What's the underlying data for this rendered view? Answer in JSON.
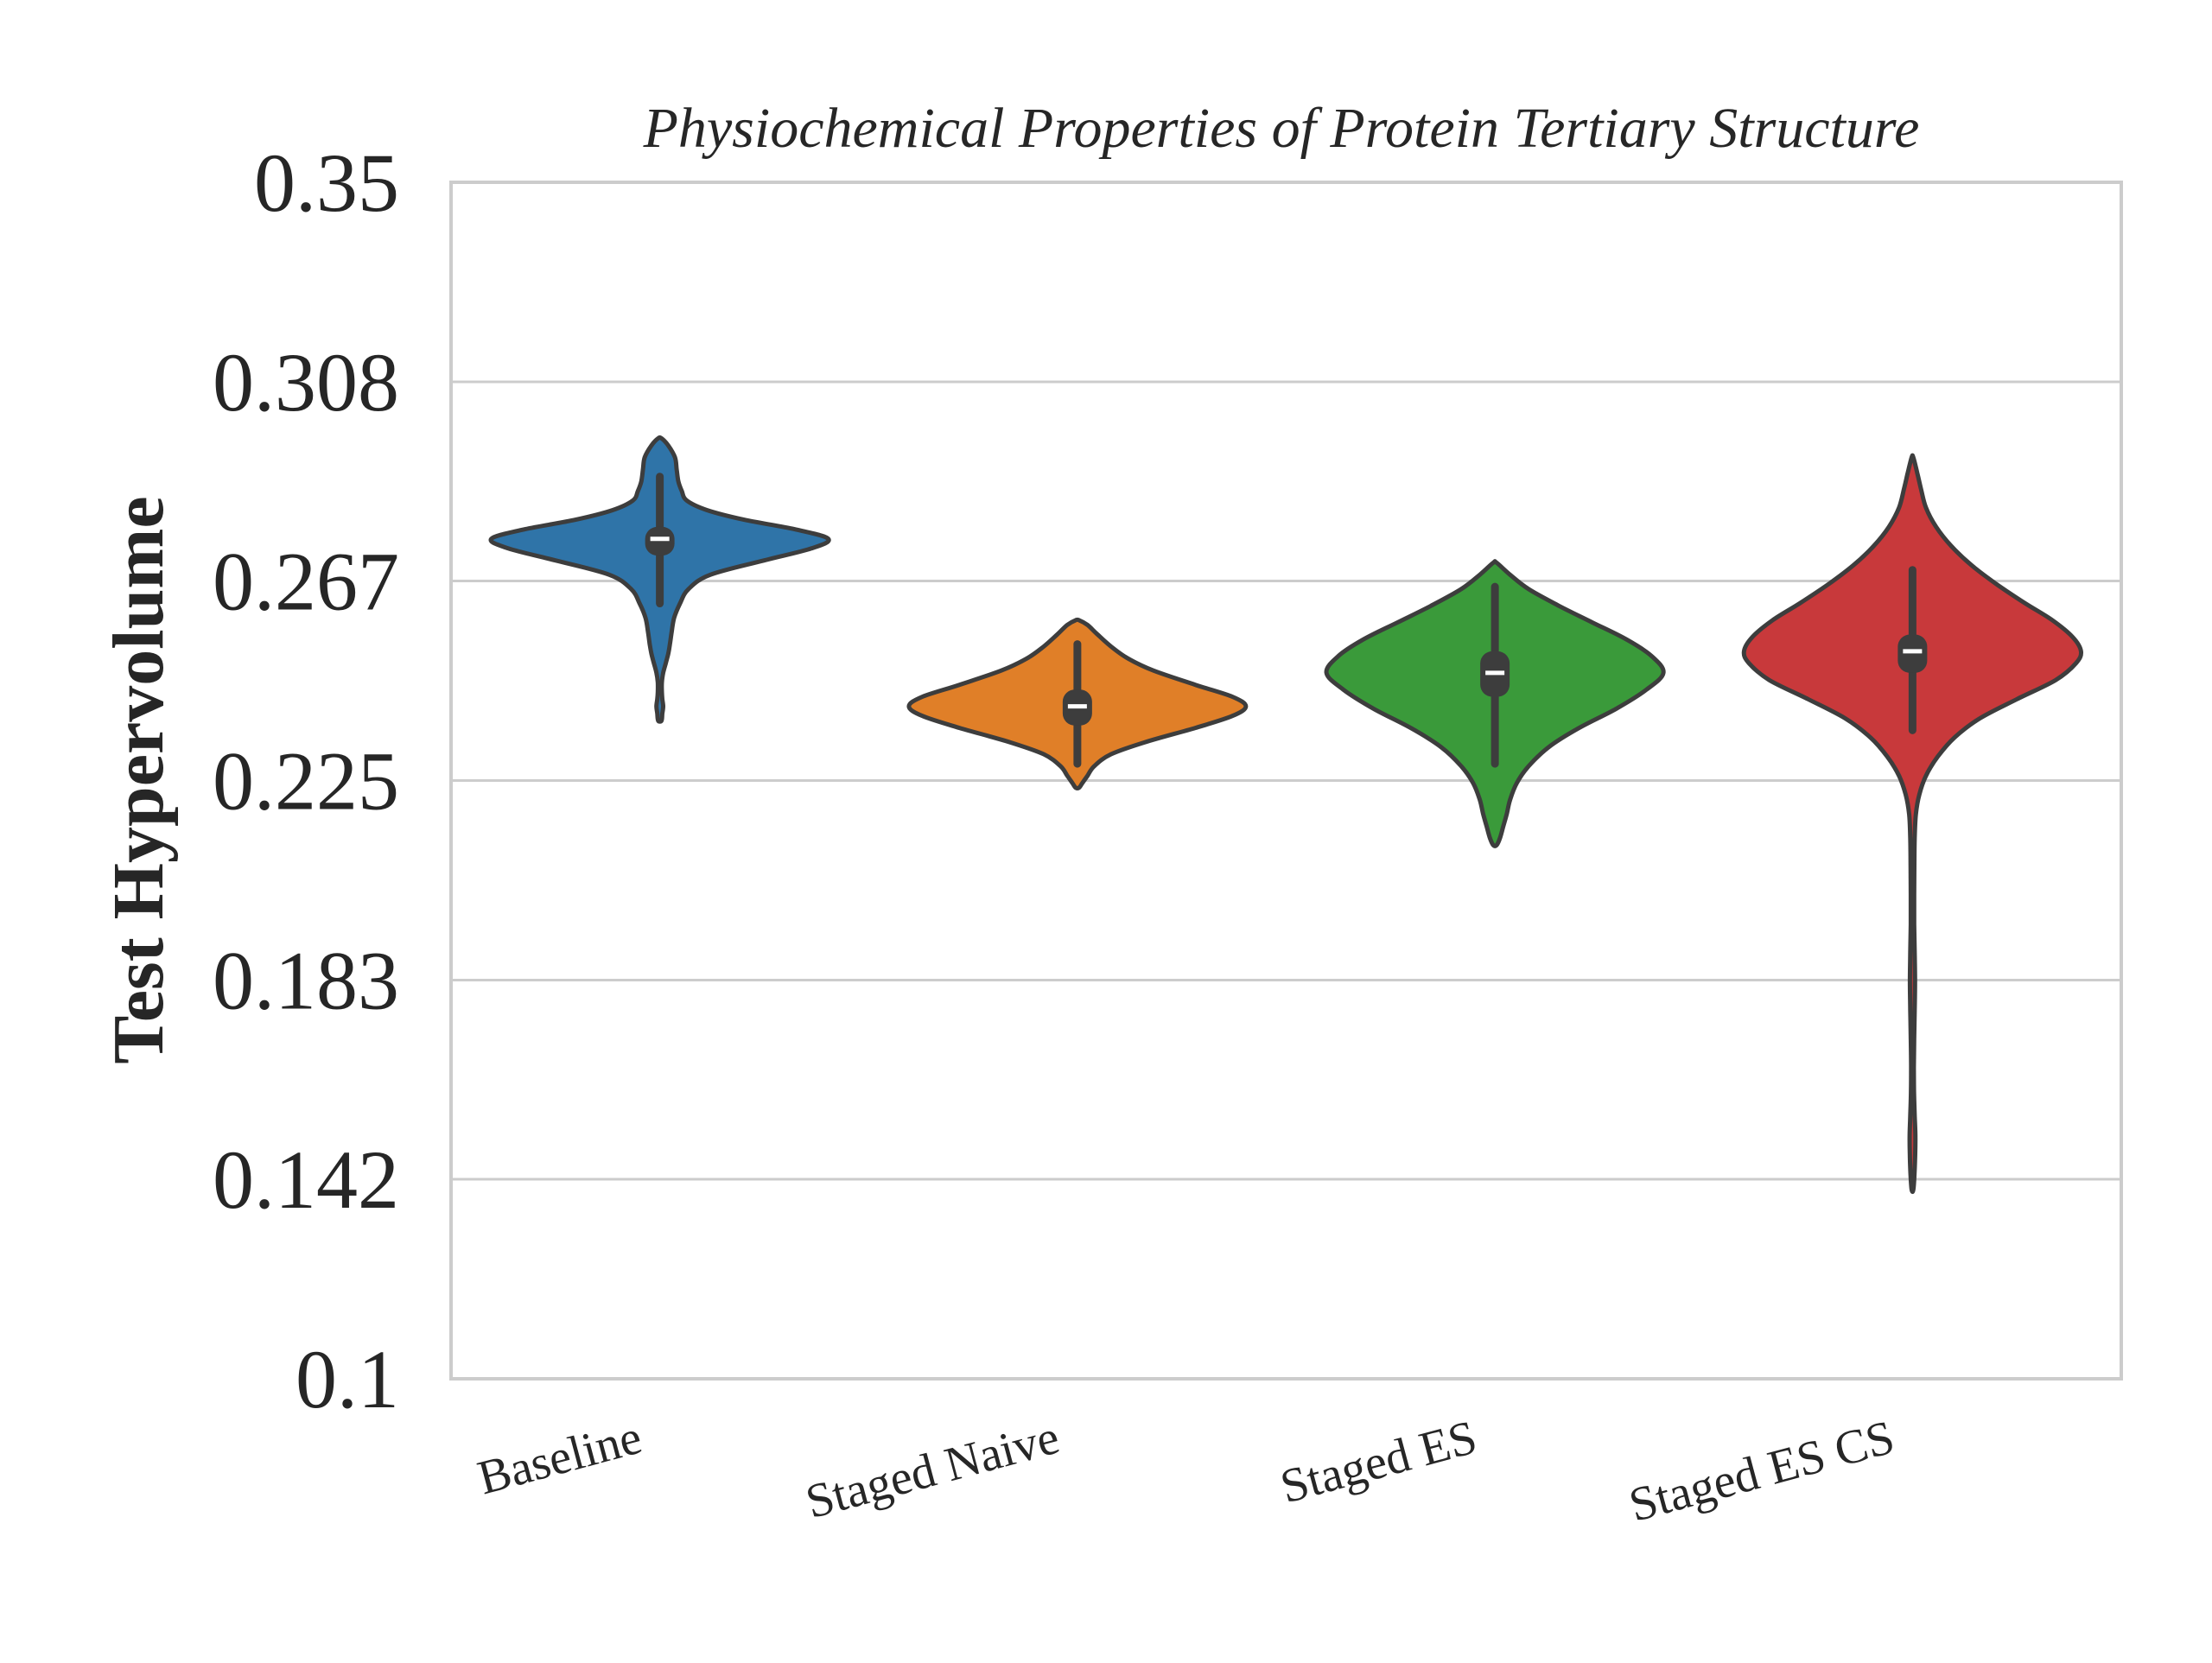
{
  "chart_data": {
    "type": "violin",
    "title": "Physiochemical Properties of Protein Tertiary Structure",
    "xlabel": "",
    "ylabel": "Test Hypervolume",
    "ylim": [
      0.1,
      0.35
    ],
    "yticks": [
      "0.1",
      "0.142",
      "0.183",
      "0.225",
      "0.267",
      "0.308",
      "0.35"
    ],
    "ytick_values": [
      0.1,
      0.1417,
      0.1833,
      0.225,
      0.2667,
      0.3083,
      0.35
    ],
    "grid": "horizontal",
    "categories": [
      "Baseline",
      "Staged Naive",
      "Staged ES",
      "Staged ES CS"
    ],
    "series": [
      {
        "color": "#2f74a8",
        "median": 0.2755,
        "q1": 0.272,
        "q3": 0.278,
        "whisker_low": 0.262,
        "whisker_high": 0.2885,
        "min": 0.2375,
        "max": 0.2965,
        "density": [
          [
            0.2375,
            0.01
          ],
          [
            0.239,
            0.015
          ],
          [
            0.2405,
            0.02
          ],
          [
            0.242,
            0.015
          ],
          [
            0.2435,
            0.012
          ],
          [
            0.2455,
            0.012
          ],
          [
            0.2475,
            0.02
          ],
          [
            0.2495,
            0.035
          ],
          [
            0.2515,
            0.05
          ],
          [
            0.2535,
            0.06
          ],
          [
            0.256,
            0.07
          ],
          [
            0.259,
            0.085
          ],
          [
            0.262,
            0.12
          ],
          [
            0.265,
            0.17
          ],
          [
            0.268,
            0.3
          ],
          [
            0.271,
            0.62
          ],
          [
            0.2735,
            0.9
          ],
          [
            0.2755,
            1.0
          ],
          [
            0.2775,
            0.8
          ],
          [
            0.2795,
            0.5
          ],
          [
            0.2815,
            0.28
          ],
          [
            0.2835,
            0.16
          ],
          [
            0.2855,
            0.13
          ],
          [
            0.2875,
            0.11
          ],
          [
            0.29,
            0.1
          ],
          [
            0.2925,
            0.09
          ],
          [
            0.295,
            0.05
          ],
          [
            0.2965,
            0.01
          ]
        ]
      },
      {
        "color": "#e07f28",
        "median": 0.2405,
        "q1": 0.2365,
        "q3": 0.244,
        "whisker_low": 0.2285,
        "whisker_high": 0.2535,
        "min": 0.2235,
        "max": 0.2585,
        "density": [
          [
            0.2235,
            0.01
          ],
          [
            0.2245,
            0.03
          ],
          [
            0.226,
            0.06
          ],
          [
            0.228,
            0.1
          ],
          [
            0.2305,
            0.2
          ],
          [
            0.233,
            0.4
          ],
          [
            0.236,
            0.7
          ],
          [
            0.2385,
            0.92
          ],
          [
            0.2405,
            1.0
          ],
          [
            0.2425,
            0.92
          ],
          [
            0.245,
            0.7
          ],
          [
            0.248,
            0.45
          ],
          [
            0.2505,
            0.3
          ],
          [
            0.253,
            0.2
          ],
          [
            0.2555,
            0.12
          ],
          [
            0.2575,
            0.06
          ],
          [
            0.2585,
            0.01
          ]
        ]
      },
      {
        "color": "#3a9a3a",
        "median": 0.2475,
        "q1": 0.2425,
        "q3": 0.252,
        "whisker_low": 0.2285,
        "whisker_high": 0.2655,
        "min": 0.2115,
        "max": 0.2705,
        "density": [
          [
            0.2115,
            0.01
          ],
          [
            0.213,
            0.03
          ],
          [
            0.2155,
            0.05
          ],
          [
            0.218,
            0.07
          ],
          [
            0.221,
            0.09
          ],
          [
            0.2245,
            0.13
          ],
          [
            0.228,
            0.2
          ],
          [
            0.232,
            0.32
          ],
          [
            0.236,
            0.5
          ],
          [
            0.24,
            0.72
          ],
          [
            0.244,
            0.9
          ],
          [
            0.2475,
            1.0
          ],
          [
            0.251,
            0.93
          ],
          [
            0.2545,
            0.78
          ],
          [
            0.258,
            0.58
          ],
          [
            0.2615,
            0.38
          ],
          [
            0.265,
            0.2
          ],
          [
            0.268,
            0.09
          ],
          [
            0.2705,
            0.01
          ]
        ]
      },
      {
        "color": "#c8393b",
        "median": 0.252,
        "q1": 0.2475,
        "q3": 0.2555,
        "whisker_low": 0.2355,
        "whisker_high": 0.269,
        "min": 0.1395,
        "max": 0.2925,
        "density": [
          [
            0.1395,
            0.005
          ],
          [
            0.143,
            0.012
          ],
          [
            0.147,
            0.016
          ],
          [
            0.151,
            0.017
          ],
          [
            0.155,
            0.013
          ],
          [
            0.16,
            0.009
          ],
          [
            0.165,
            0.008
          ],
          [
            0.171,
            0.01
          ],
          [
            0.177,
            0.013
          ],
          [
            0.183,
            0.015
          ],
          [
            0.189,
            0.013
          ],
          [
            0.195,
            0.01
          ],
          [
            0.201,
            0.01
          ],
          [
            0.207,
            0.011
          ],
          [
            0.213,
            0.013
          ],
          [
            0.218,
            0.02
          ],
          [
            0.222,
            0.04
          ],
          [
            0.226,
            0.08
          ],
          [
            0.23,
            0.15
          ],
          [
            0.234,
            0.25
          ],
          [
            0.238,
            0.4
          ],
          [
            0.242,
            0.62
          ],
          [
            0.246,
            0.85
          ],
          [
            0.2495,
            0.97
          ],
          [
            0.252,
            1.0
          ],
          [
            0.255,
            0.95
          ],
          [
            0.2585,
            0.83
          ],
          [
            0.262,
            0.67
          ],
          [
            0.266,
            0.5
          ],
          [
            0.27,
            0.35
          ],
          [
            0.274,
            0.23
          ],
          [
            0.278,
            0.14
          ],
          [
            0.282,
            0.08
          ],
          [
            0.286,
            0.05
          ],
          [
            0.289,
            0.03
          ],
          [
            0.2925,
            0.005
          ]
        ]
      }
    ]
  }
}
